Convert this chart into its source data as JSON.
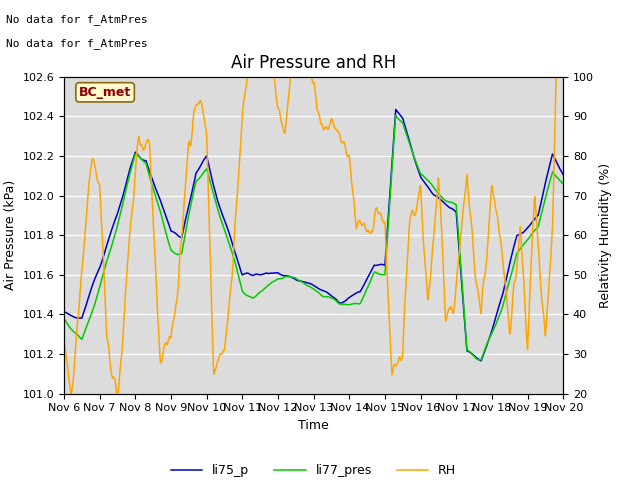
{
  "title": "Air Pressure and RH",
  "ylabel_left": "Air Pressure (kPa)",
  "ylabel_right": "Relativity Humidity (%)",
  "xlabel": "Time",
  "text_top_left_line1": "No data for f_AtmPres",
  "text_top_left_line2": "No data for f̲AtmPres",
  "box_label": "BC_met",
  "ylim_left": [
    101.0,
    102.6
  ],
  "ylim_right": [
    20,
    100
  ],
  "yticks_left": [
    101.0,
    101.2,
    101.4,
    101.6,
    101.8,
    102.0,
    102.2,
    102.4,
    102.6
  ],
  "yticks_right": [
    20,
    30,
    40,
    50,
    60,
    70,
    80,
    90,
    100
  ],
  "legend_entries": [
    "li75_p",
    "li77_pres",
    "RH"
  ],
  "legend_colors": [
    "#0000cc",
    "#00cc00",
    "#ffa500"
  ],
  "background_color": "#dcdcdc",
  "title_fontsize": 12,
  "axis_fontsize": 9,
  "tick_fontsize": 8,
  "line_width": 1.1,
  "num_points": 3000
}
